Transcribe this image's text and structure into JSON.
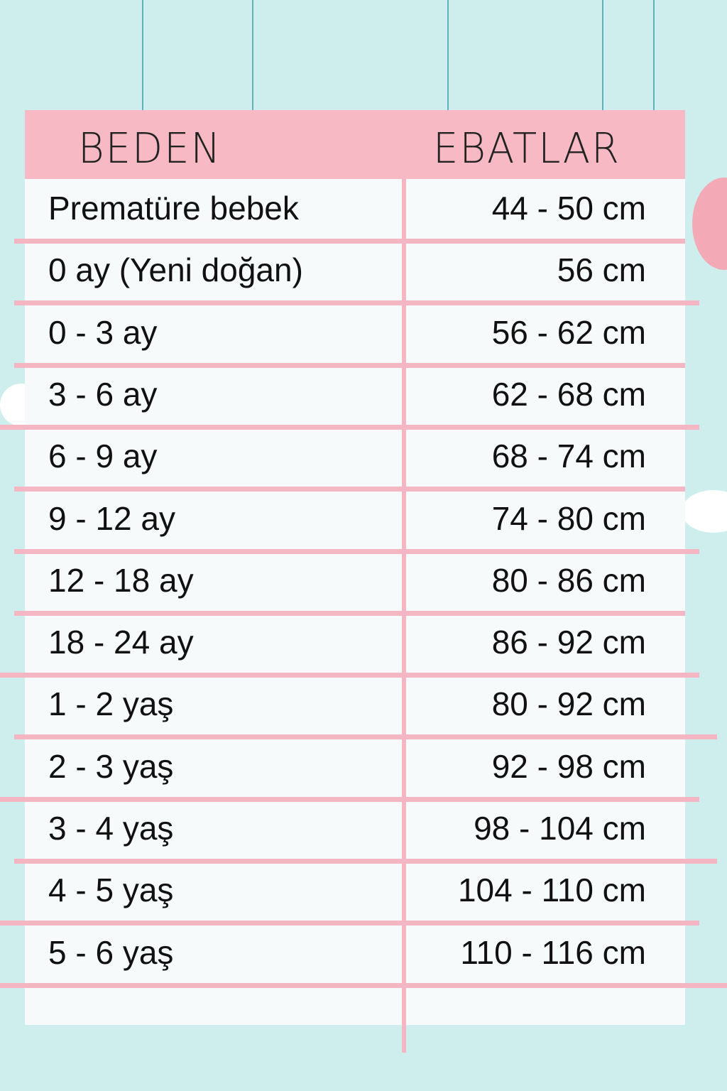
{
  "table": {
    "headers": [
      "BEDEN",
      "EBATLAR"
    ],
    "rows": [
      {
        "size": "Prematüre bebek",
        "measure": "44 - 50 cm"
      },
      {
        "size": "0 ay (Yeni doğan)",
        "measure": "56 cm"
      },
      {
        "size": "0 - 3 ay",
        "measure": "56 - 62 cm"
      },
      {
        "size": "3 - 6 ay",
        "measure": "62 - 68 cm"
      },
      {
        "size": "6 - 9 ay",
        "measure": "68 - 74 cm"
      },
      {
        "size": "9 - 12 ay",
        "measure": "74 - 80 cm"
      },
      {
        "size": "12 - 18 ay",
        "measure": "80 - 86 cm"
      },
      {
        "size": "18 - 24 ay",
        "measure": "86 - 92 cm"
      },
      {
        "size": "1 - 2 yaş",
        "measure": "80 - 92 cm"
      },
      {
        "size": "2 - 3 yaş",
        "measure": "92 - 98 cm"
      },
      {
        "size": "3 - 4 yaş",
        "measure": "98 - 104 cm"
      },
      {
        "size": "4 - 5 yaş",
        "measure": "104 - 110 cm"
      },
      {
        "size": "5 - 6 yaş",
        "measure": "110 - 116 cm"
      }
    ]
  },
  "colors": {
    "background": "#cdeeed",
    "header": "#f7b9c3",
    "lines": "#f4b6c2",
    "strings": "#5fb0b8"
  }
}
